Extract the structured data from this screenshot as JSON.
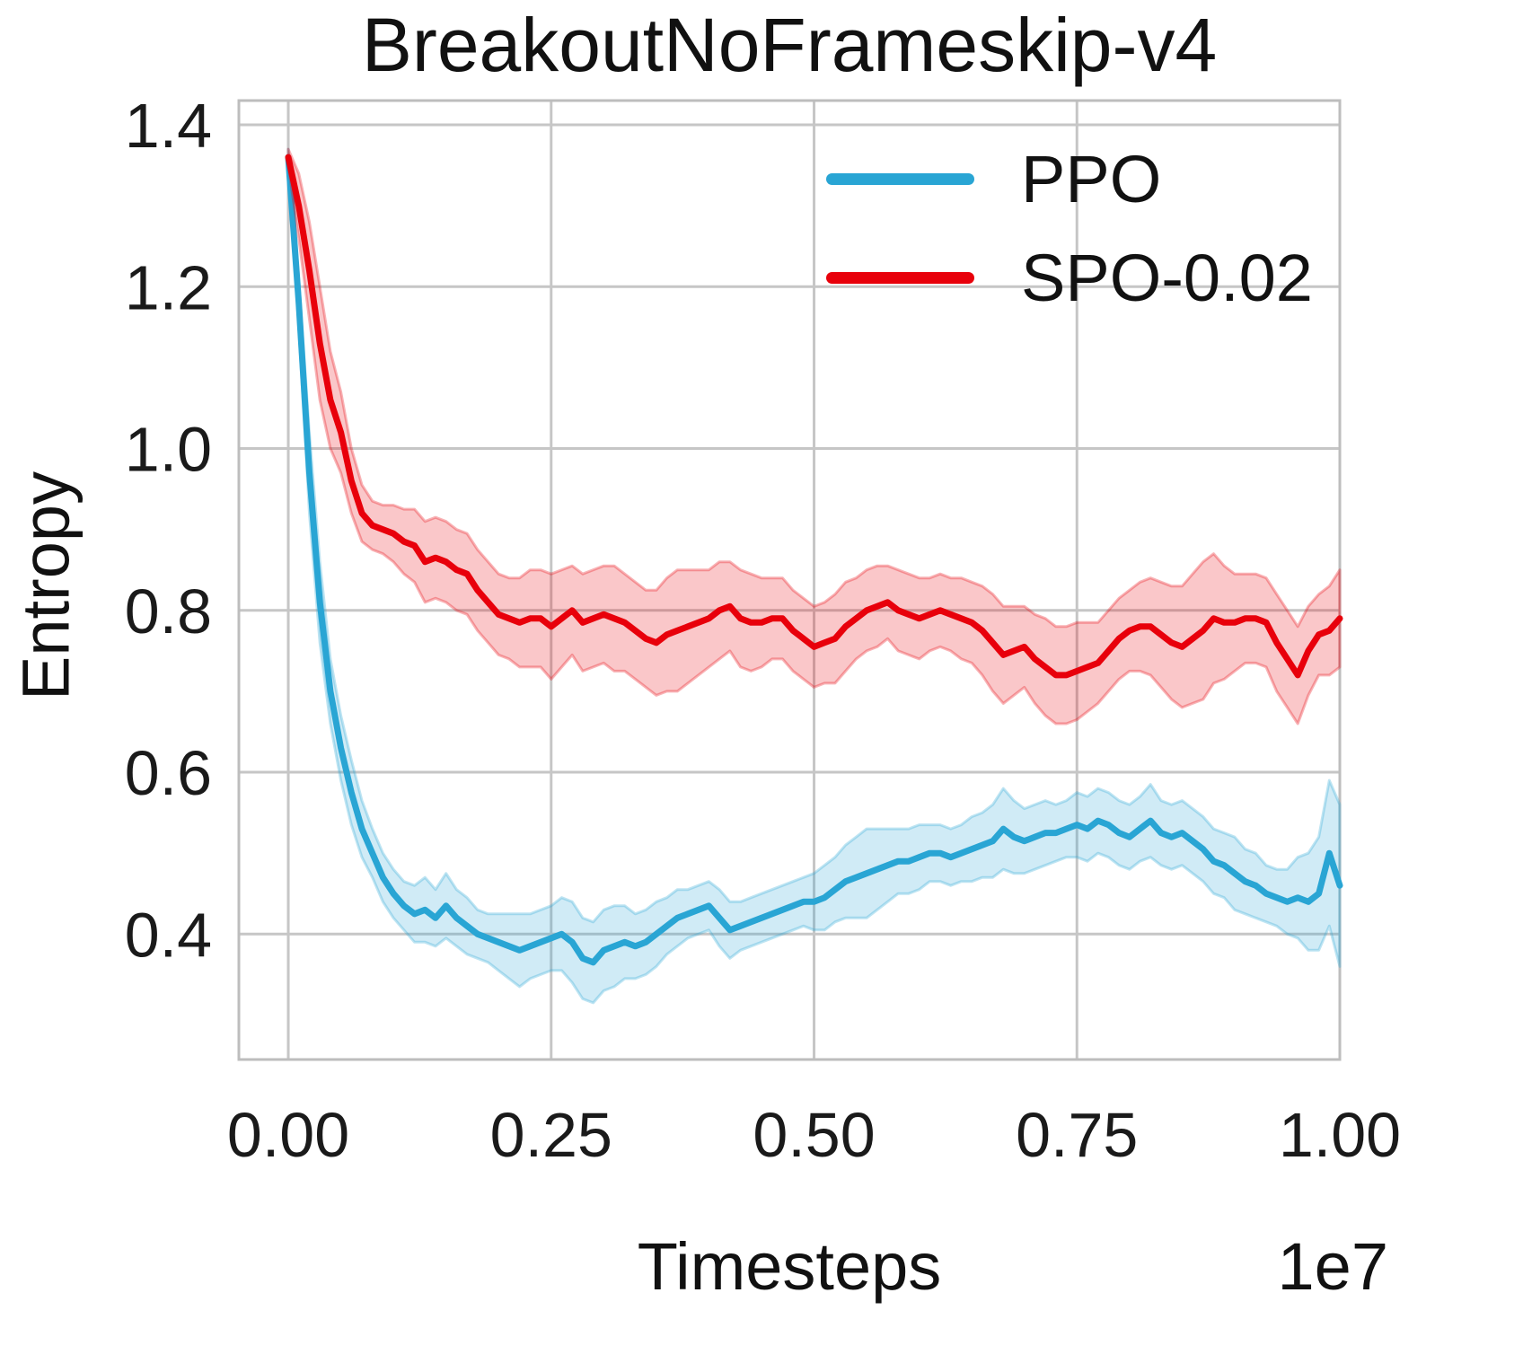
{
  "chart_data": {
    "type": "line",
    "title": "BreakoutNoFrameskip-v4",
    "xlabel": "Timesteps",
    "ylabel": "Entropy",
    "x_offset_label": "1e7",
    "x_scale": 10000000,
    "grid": true,
    "legend_position": "upper right",
    "xlim": [
      -0.047,
      1.0
    ],
    "ylim": [
      0.245,
      1.43
    ],
    "xticks": [
      0.0,
      0.25,
      0.5,
      0.75,
      1.0
    ],
    "xtick_labels": [
      "0.00",
      "0.25",
      "0.50",
      "0.75",
      "1.00"
    ],
    "yticks": [
      0.4,
      0.6,
      0.8,
      1.0,
      1.2,
      1.4
    ],
    "ytick_labels": [
      "0.4",
      "0.6",
      "0.8",
      "1.0",
      "1.2",
      "1.4"
    ],
    "x": [
      0.0,
      0.01,
      0.02,
      0.03,
      0.04,
      0.05,
      0.06,
      0.07,
      0.08,
      0.09,
      0.1,
      0.11,
      0.12,
      0.13,
      0.14,
      0.15,
      0.16,
      0.17,
      0.18,
      0.19,
      0.2,
      0.21,
      0.22,
      0.23,
      0.24,
      0.25,
      0.26,
      0.27,
      0.28,
      0.29,
      0.3,
      0.31,
      0.32,
      0.33,
      0.34,
      0.35,
      0.36,
      0.37,
      0.38,
      0.39,
      0.4,
      0.41,
      0.42,
      0.43,
      0.44,
      0.45,
      0.46,
      0.47,
      0.48,
      0.49,
      0.5,
      0.51,
      0.52,
      0.53,
      0.54,
      0.55,
      0.56,
      0.57,
      0.58,
      0.59,
      0.6,
      0.61,
      0.62,
      0.63,
      0.64,
      0.65,
      0.66,
      0.67,
      0.68,
      0.69,
      0.7,
      0.71,
      0.72,
      0.73,
      0.74,
      0.75,
      0.76,
      0.77,
      0.78,
      0.79,
      0.8,
      0.81,
      0.82,
      0.83,
      0.84,
      0.85,
      0.86,
      0.87,
      0.88,
      0.89,
      0.9,
      0.91,
      0.92,
      0.93,
      0.94,
      0.95,
      0.96,
      0.97,
      0.98,
      0.99,
      1.0
    ],
    "series": [
      {
        "name": "PPO",
        "color": "#29a5d4",
        "mean": [
          1.36,
          1.18,
          0.97,
          0.81,
          0.7,
          0.63,
          0.575,
          0.53,
          0.5,
          0.47,
          0.45,
          0.435,
          0.425,
          0.43,
          0.42,
          0.435,
          0.42,
          0.41,
          0.4,
          0.395,
          0.39,
          0.385,
          0.38,
          0.385,
          0.39,
          0.395,
          0.4,
          0.39,
          0.37,
          0.365,
          0.38,
          0.385,
          0.39,
          0.385,
          0.39,
          0.4,
          0.41,
          0.42,
          0.425,
          0.43,
          0.435,
          0.42,
          0.405,
          0.41,
          0.415,
          0.42,
          0.425,
          0.43,
          0.435,
          0.44,
          0.44,
          0.445,
          0.455,
          0.465,
          0.47,
          0.475,
          0.48,
          0.485,
          0.49,
          0.49,
          0.495,
          0.5,
          0.5,
          0.495,
          0.5,
          0.505,
          0.51,
          0.515,
          0.53,
          0.52,
          0.515,
          0.52,
          0.525,
          0.525,
          0.53,
          0.535,
          0.53,
          0.54,
          0.535,
          0.525,
          0.52,
          0.53,
          0.54,
          0.525,
          0.52,
          0.525,
          0.515,
          0.505,
          0.49,
          0.485,
          0.475,
          0.465,
          0.46,
          0.45,
          0.445,
          0.44,
          0.445,
          0.44,
          0.45,
          0.5,
          0.46
        ],
        "band": [
          0.01,
          0.03,
          0.05,
          0.05,
          0.04,
          0.04,
          0.04,
          0.035,
          0.03,
          0.03,
          0.03,
          0.03,
          0.035,
          0.04,
          0.035,
          0.04,
          0.035,
          0.035,
          0.03,
          0.03,
          0.035,
          0.04,
          0.045,
          0.04,
          0.04,
          0.04,
          0.045,
          0.05,
          0.05,
          0.05,
          0.05,
          0.05,
          0.045,
          0.04,
          0.04,
          0.04,
          0.035,
          0.035,
          0.03,
          0.03,
          0.03,
          0.035,
          0.035,
          0.03,
          0.03,
          0.03,
          0.03,
          0.03,
          0.03,
          0.03,
          0.035,
          0.04,
          0.04,
          0.045,
          0.05,
          0.055,
          0.05,
          0.045,
          0.04,
          0.04,
          0.04,
          0.035,
          0.035,
          0.035,
          0.035,
          0.04,
          0.04,
          0.045,
          0.05,
          0.045,
          0.04,
          0.04,
          0.04,
          0.035,
          0.035,
          0.04,
          0.04,
          0.04,
          0.04,
          0.04,
          0.04,
          0.04,
          0.045,
          0.04,
          0.04,
          0.04,
          0.04,
          0.04,
          0.04,
          0.04,
          0.045,
          0.04,
          0.04,
          0.035,
          0.035,
          0.04,
          0.05,
          0.06,
          0.07,
          0.09,
          0.1
        ]
      },
      {
        "name": "SPO-0.02",
        "color": "#e8000b",
        "mean": [
          1.36,
          1.3,
          1.22,
          1.13,
          1.06,
          1.02,
          0.96,
          0.92,
          0.905,
          0.9,
          0.895,
          0.885,
          0.88,
          0.86,
          0.865,
          0.86,
          0.85,
          0.845,
          0.825,
          0.81,
          0.795,
          0.79,
          0.785,
          0.79,
          0.79,
          0.78,
          0.79,
          0.8,
          0.785,
          0.79,
          0.795,
          0.79,
          0.785,
          0.775,
          0.765,
          0.76,
          0.77,
          0.775,
          0.78,
          0.785,
          0.79,
          0.8,
          0.805,
          0.79,
          0.785,
          0.785,
          0.79,
          0.79,
          0.775,
          0.765,
          0.755,
          0.76,
          0.765,
          0.78,
          0.79,
          0.8,
          0.805,
          0.81,
          0.8,
          0.795,
          0.79,
          0.795,
          0.8,
          0.795,
          0.79,
          0.785,
          0.775,
          0.76,
          0.745,
          0.75,
          0.755,
          0.74,
          0.73,
          0.72,
          0.72,
          0.725,
          0.73,
          0.735,
          0.75,
          0.765,
          0.775,
          0.78,
          0.78,
          0.77,
          0.76,
          0.755,
          0.765,
          0.775,
          0.79,
          0.785,
          0.785,
          0.79,
          0.79,
          0.785,
          0.76,
          0.74,
          0.72,
          0.75,
          0.77,
          0.775,
          0.79
        ],
        "band": [
          0.01,
          0.04,
          0.06,
          0.07,
          0.06,
          0.05,
          0.04,
          0.035,
          0.03,
          0.03,
          0.035,
          0.04,
          0.045,
          0.05,
          0.05,
          0.05,
          0.05,
          0.05,
          0.05,
          0.05,
          0.05,
          0.05,
          0.055,
          0.06,
          0.06,
          0.065,
          0.06,
          0.055,
          0.06,
          0.06,
          0.06,
          0.065,
          0.06,
          0.06,
          0.06,
          0.065,
          0.07,
          0.075,
          0.07,
          0.065,
          0.06,
          0.06,
          0.055,
          0.06,
          0.06,
          0.055,
          0.05,
          0.05,
          0.05,
          0.05,
          0.05,
          0.05,
          0.055,
          0.055,
          0.05,
          0.05,
          0.05,
          0.045,
          0.05,
          0.05,
          0.05,
          0.045,
          0.045,
          0.045,
          0.05,
          0.05,
          0.055,
          0.06,
          0.06,
          0.055,
          0.05,
          0.055,
          0.06,
          0.06,
          0.06,
          0.06,
          0.055,
          0.05,
          0.05,
          0.05,
          0.05,
          0.055,
          0.06,
          0.065,
          0.07,
          0.075,
          0.08,
          0.085,
          0.08,
          0.07,
          0.06,
          0.055,
          0.055,
          0.055,
          0.06,
          0.06,
          0.06,
          0.055,
          0.05,
          0.055,
          0.06
        ]
      }
    ]
  }
}
